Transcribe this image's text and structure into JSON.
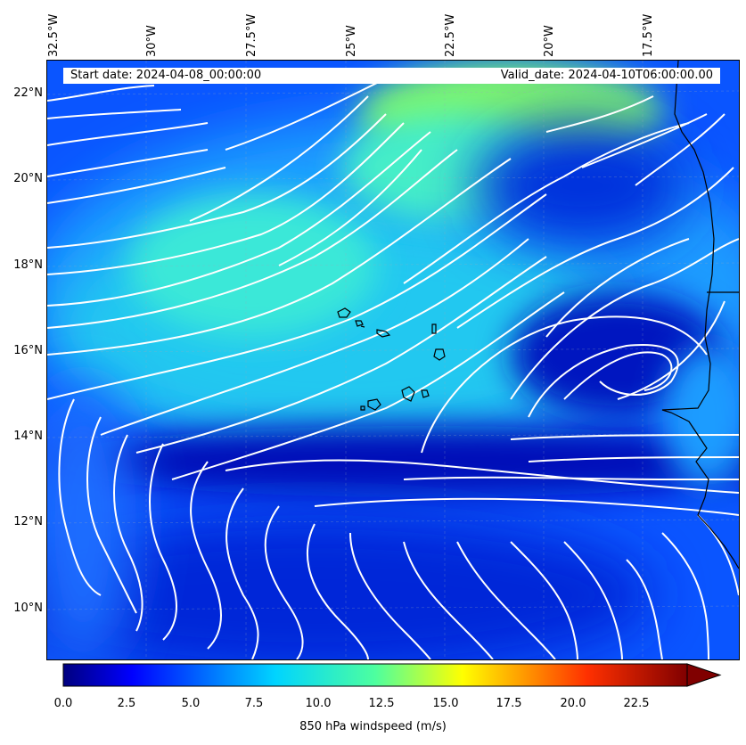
{
  "map": {
    "start_date": "Start date: 2024-04-08_00:00:00",
    "valid_date": "Valid_date: 2024-04-10T06:00:00.00",
    "lon_labels": [
      "32.5°W",
      "30°W",
      "27.5°W",
      "25°W",
      "22.5°W",
      "20°W",
      "17.5°W"
    ],
    "lat_labels": [
      "22°N",
      "20°N",
      "18°N",
      "16°N",
      "14°N",
      "12°N",
      "10°N"
    ],
    "field": "850 hPa windspeed",
    "colors": {
      "low": "#0000cc",
      "mid": "#29d8e8",
      "high": "#7df56e",
      "stream": "#ffffff",
      "coast": "#000000"
    }
  },
  "colorbar": {
    "label": "850 hPa windspeed (m/s)",
    "ticks": [
      "0.0",
      "2.5",
      "5.0",
      "7.5",
      "10.0",
      "12.5",
      "15.0",
      "17.5",
      "20.0",
      "22.5"
    ],
    "range": [
      0,
      25
    ],
    "extend": "max",
    "colormap": "jet"
  }
}
